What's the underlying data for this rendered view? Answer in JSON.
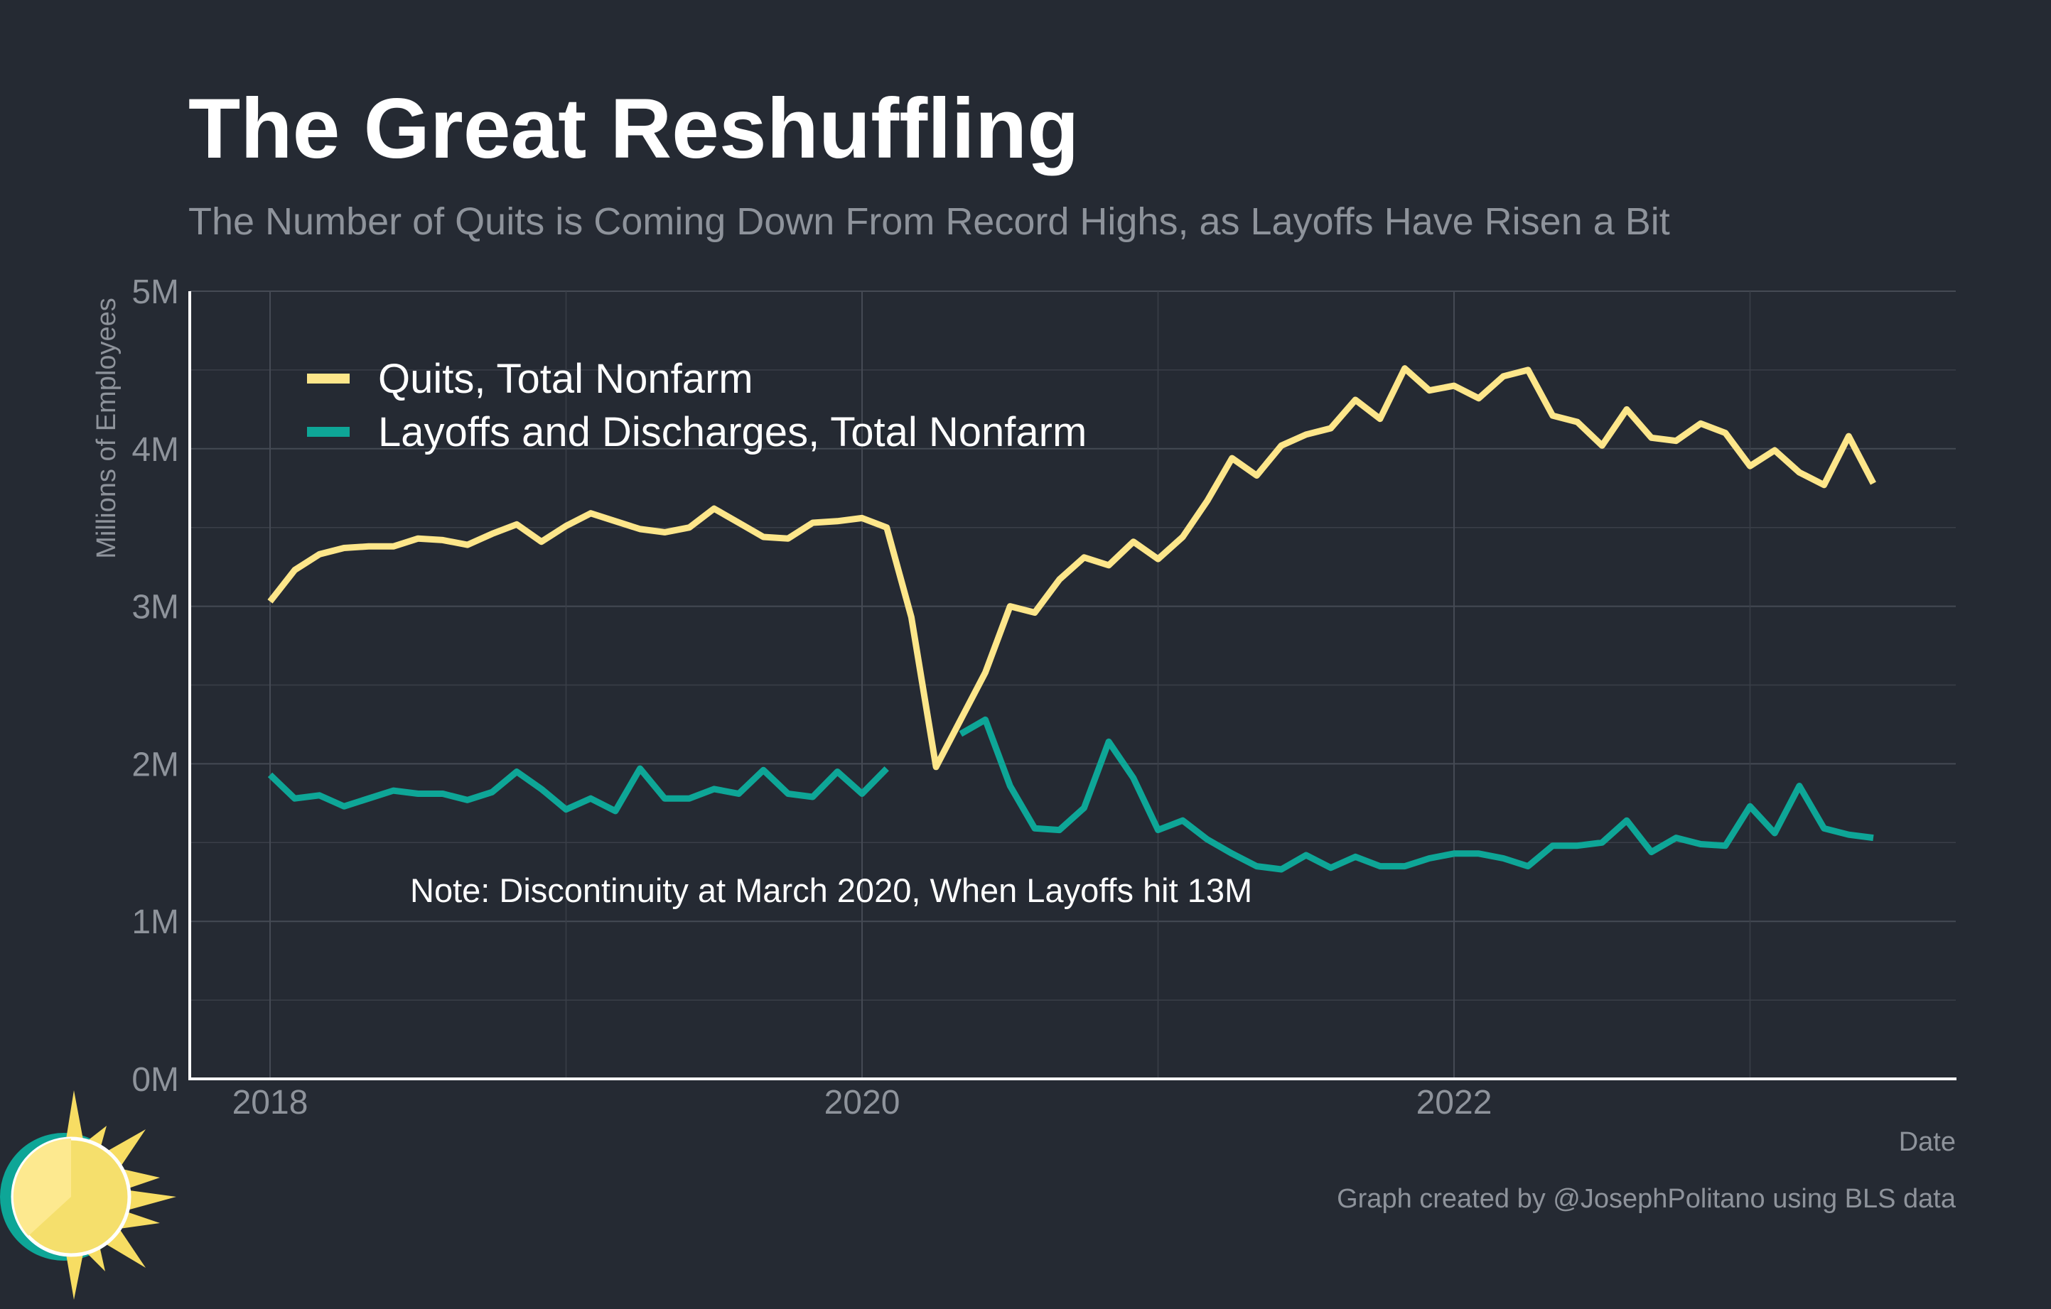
{
  "chart_data": {
    "type": "line",
    "title": "The Great Reshuffling",
    "subtitle": "The Number of Quits is Coming Down From Record Highs, as Layoffs Have Risen a Bit",
    "xlabel": "Date",
    "ylabel": "Millions of Employees",
    "ylim": [
      0,
      5
    ],
    "yticks": [
      "0M",
      "1M",
      "2M",
      "3M",
      "4M",
      "5M"
    ],
    "xticks": [
      "2018",
      "2020",
      "2022"
    ],
    "grid": true,
    "legend_position": "top-left",
    "x_start": "2018-01",
    "x_end": "2023-06",
    "x_frequency": "monthly",
    "annotation": "Note: Discontinuity at March 2020, When Layoffs hit 13M",
    "caption": "Graph created by @JosephPolitano using BLS data",
    "series": [
      {
        "name": "Quits, Total Nonfarm",
        "color": "#fde68a",
        "values": [
          3.03,
          3.23,
          3.33,
          3.37,
          3.38,
          3.38,
          3.43,
          3.42,
          3.39,
          3.46,
          3.52,
          3.41,
          3.51,
          3.59,
          3.54,
          3.49,
          3.47,
          3.5,
          3.62,
          3.53,
          3.44,
          3.43,
          3.53,
          3.54,
          3.56,
          3.5,
          2.93,
          1.98,
          2.28,
          2.58,
          3.0,
          2.96,
          3.17,
          3.31,
          3.26,
          3.41,
          3.3,
          3.44,
          3.67,
          3.94,
          3.83,
          4.02,
          4.09,
          4.13,
          4.31,
          4.19,
          4.51,
          4.37,
          4.4,
          4.32,
          4.46,
          4.5,
          4.21,
          4.17,
          4.02,
          4.25,
          4.07,
          4.05,
          4.16,
          4.1,
          3.89,
          3.99,
          3.85,
          3.77,
          4.08,
          3.78
        ]
      },
      {
        "name": "Layoffs and Discharges, Total Nonfarm",
        "color": "#0ea697",
        "values": [
          1.93,
          1.78,
          1.8,
          1.73,
          1.78,
          1.83,
          1.81,
          1.81,
          1.77,
          1.82,
          1.95,
          1.84,
          1.71,
          1.78,
          1.7,
          1.97,
          1.78,
          1.78,
          1.84,
          1.81,
          1.96,
          1.81,
          1.79,
          1.95,
          1.81,
          1.97,
          null,
          null,
          2.19,
          2.28,
          1.86,
          1.59,
          1.58,
          1.72,
          2.14,
          1.91,
          1.58,
          1.64,
          1.52,
          1.43,
          1.35,
          1.33,
          1.42,
          1.34,
          1.41,
          1.35,
          1.35,
          1.4,
          1.43,
          1.43,
          1.4,
          1.35,
          1.48,
          1.48,
          1.5,
          1.64,
          1.44,
          1.53,
          1.49,
          1.48,
          1.73,
          1.56,
          1.86,
          1.59,
          1.55,
          1.53
        ]
      }
    ]
  }
}
